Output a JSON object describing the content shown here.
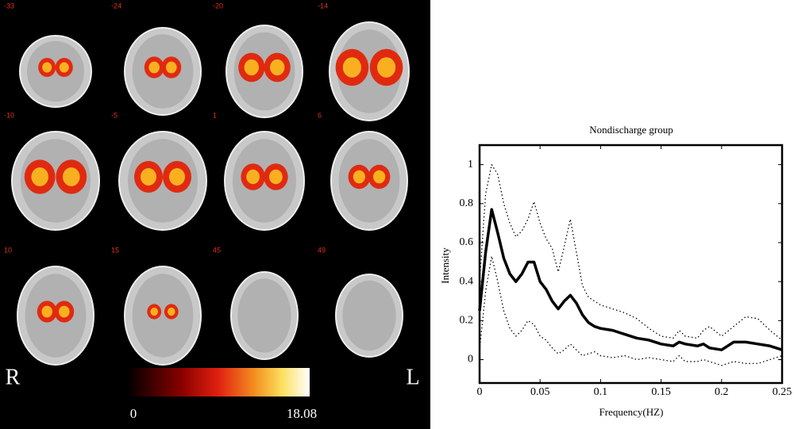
{
  "brain_panel": {
    "slices": [
      "-33",
      "-24",
      "-20",
      "-14",
      "-10",
      "-5",
      "1",
      "6",
      "10",
      "15",
      "45",
      "49"
    ],
    "sides": [
      "R",
      "L"
    ],
    "colorbar": {
      "min": 0,
      "max": 18.08
    }
  },
  "chart_data": {
    "type": "line",
    "title": "Nondischarge group",
    "x_label": "Frequency(HZ)",
    "y_label": "Intensity",
    "x": [
      0,
      0.005,
      0.01,
      0.015,
      0.02,
      0.025,
      0.03,
      0.035,
      0.04,
      0.045,
      0.05,
      0.055,
      0.06,
      0.065,
      0.07,
      0.075,
      0.08,
      0.085,
      0.09,
      0.095,
      0.1,
      0.11,
      0.12,
      0.13,
      0.14,
      0.15,
      0.16,
      0.165,
      0.17,
      0.18,
      0.185,
      0.19,
      0.2,
      0.21,
      0.22,
      0.23,
      0.24,
      0.25
    ],
    "series": [
      {
        "color": "#000000",
        "style": "solid",
        "values": [
          0.25,
          0.55,
          0.77,
          0.65,
          0.52,
          0.44,
          0.4,
          0.44,
          0.5,
          0.5,
          0.4,
          0.36,
          0.3,
          0.26,
          0.3,
          0.33,
          0.29,
          0.23,
          0.19,
          0.17,
          0.16,
          0.15,
          0.13,
          0.11,
          0.1,
          0.08,
          0.07,
          0.09,
          0.08,
          0.07,
          0.08,
          0.06,
          0.05,
          0.09,
          0.09,
          0.08,
          0.07,
          0.05
        ]
      },
      {
        "color": "#000000",
        "style": "dotted",
        "values": [
          0.4,
          0.85,
          1.0,
          0.95,
          0.8,
          0.7,
          0.63,
          0.66,
          0.72,
          0.81,
          0.7,
          0.62,
          0.57,
          0.45,
          0.58,
          0.72,
          0.55,
          0.38,
          0.32,
          0.3,
          0.28,
          0.26,
          0.24,
          0.21,
          0.16,
          0.12,
          0.11,
          0.15,
          0.12,
          0.11,
          0.15,
          0.17,
          0.12,
          0.17,
          0.22,
          0.21,
          0.15,
          0.1
        ]
      },
      {
        "color": "#000000",
        "style": "dotted",
        "values": [
          0.05,
          0.35,
          0.53,
          0.4,
          0.25,
          0.16,
          0.12,
          0.15,
          0.2,
          0.18,
          0.12,
          0.1,
          0.06,
          0.03,
          0.05,
          0.08,
          0.05,
          0.02,
          0.03,
          0.04,
          0.02,
          0.01,
          0.02,
          0.0,
          0.01,
          0.0,
          -0.01,
          0.02,
          -0.01,
          -0.01,
          0.0,
          -0.01,
          -0.03,
          -0.01,
          -0.02,
          -0.02,
          0.0,
          0.02
        ]
      }
    ],
    "xlim": [
      0,
      0.25
    ],
    "ylim": [
      -0.12,
      1.1
    ],
    "xticks": [
      0,
      0.05,
      0.1,
      0.15,
      0.2,
      0.25
    ],
    "yticks": [
      0,
      0.2,
      0.4,
      0.6,
      0.8,
      1
    ],
    "grid": false
  }
}
